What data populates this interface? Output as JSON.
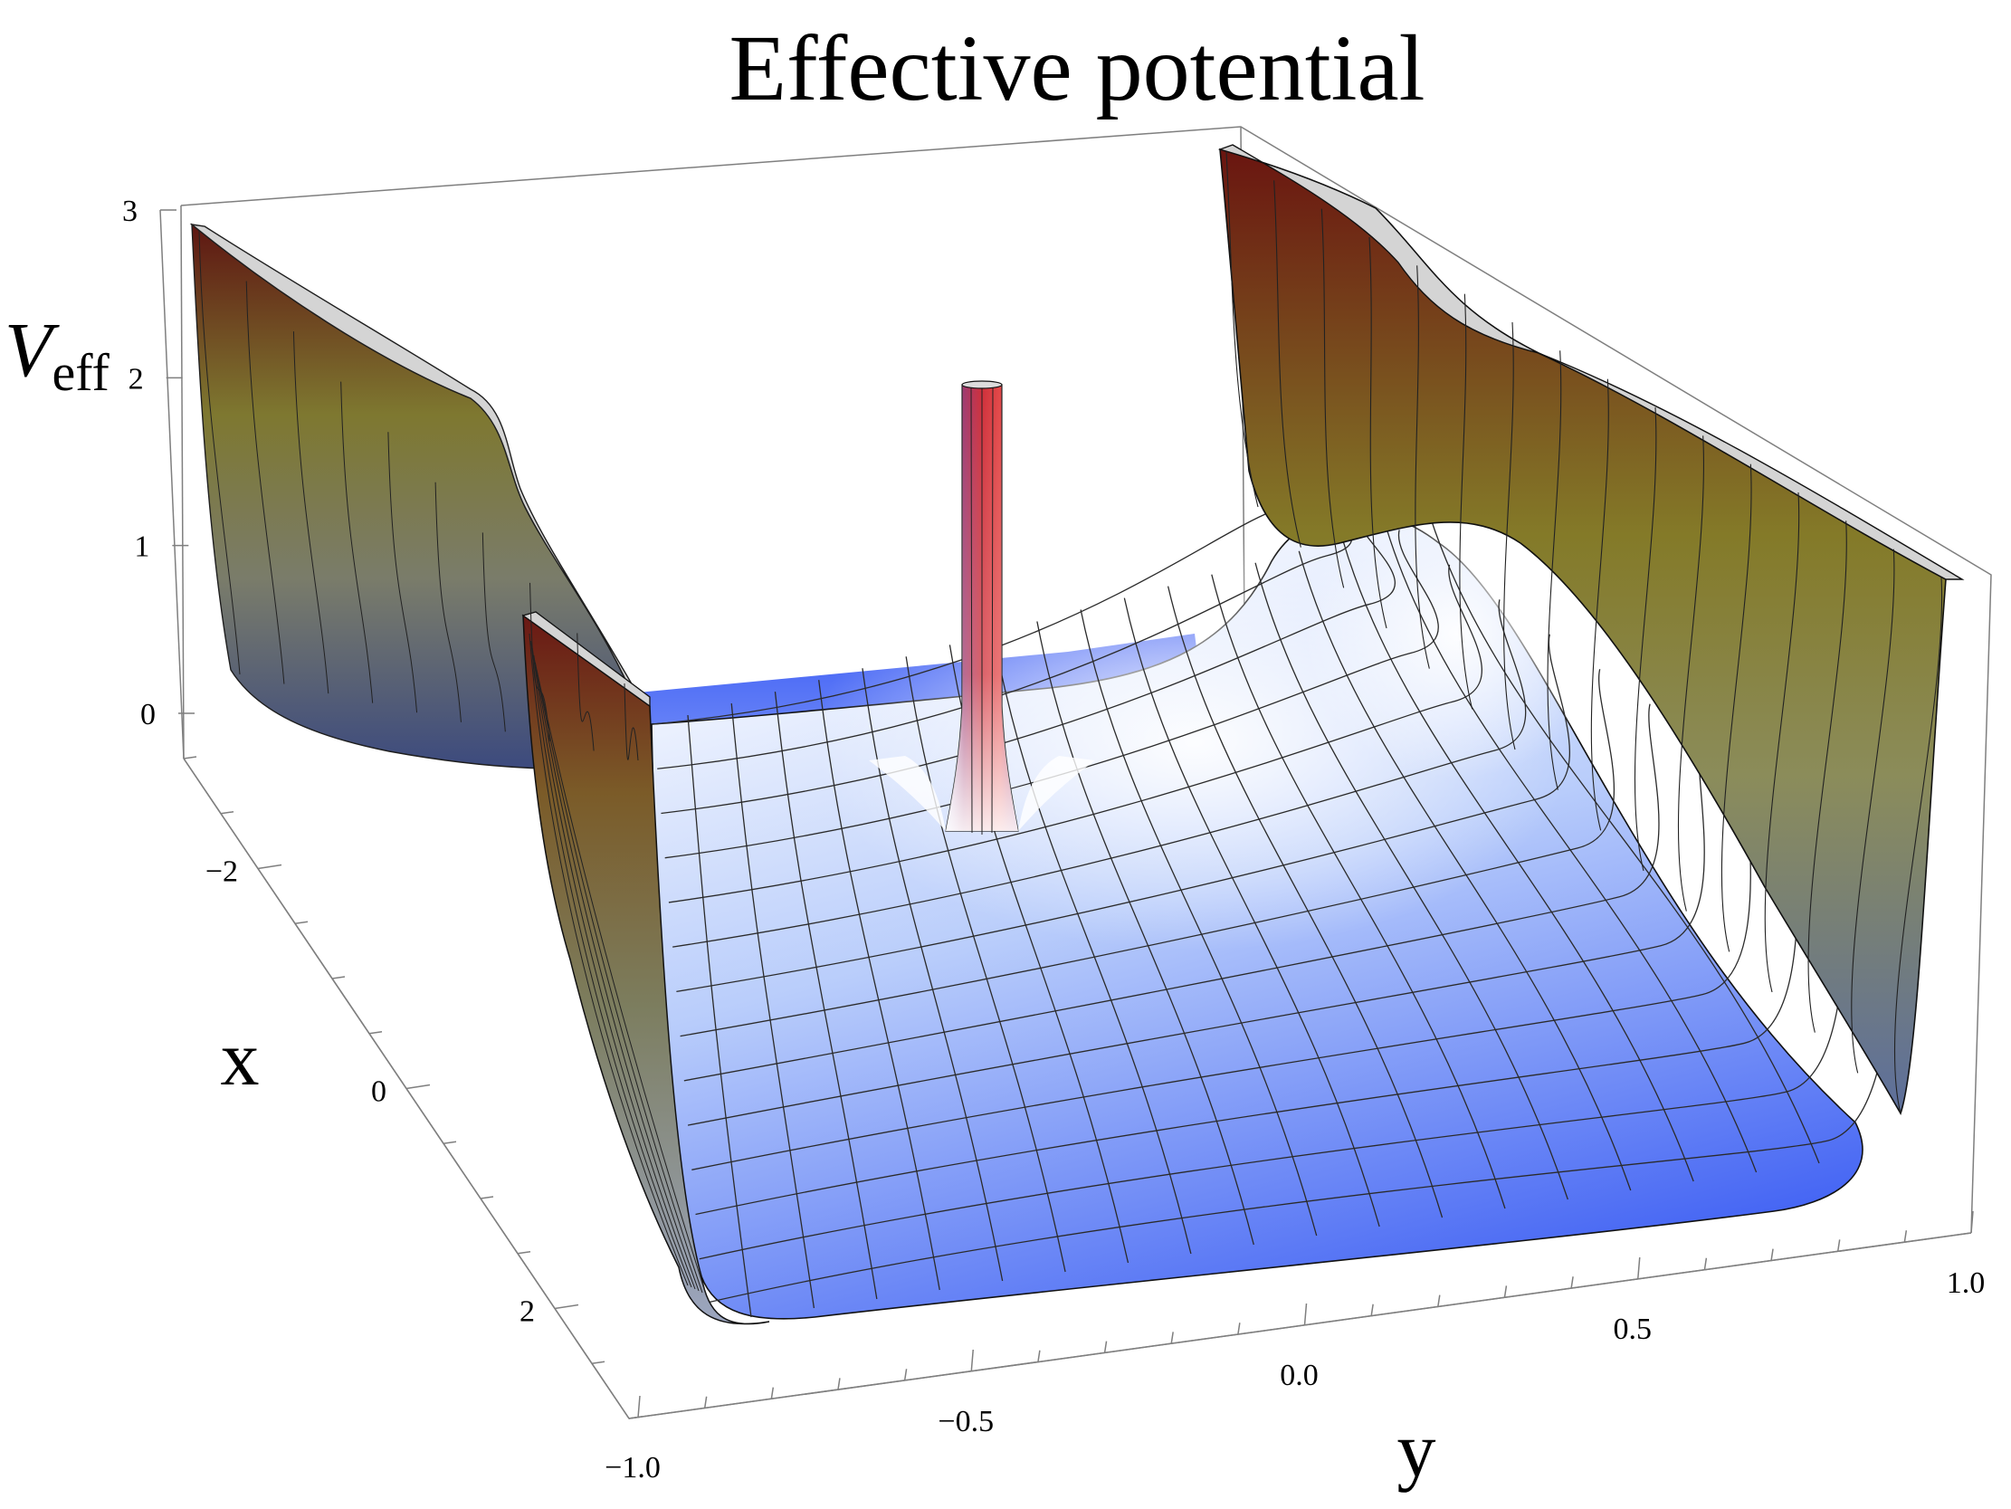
{
  "chart_data": {
    "type": "surface",
    "title": "Effective potential",
    "xlabel": "x",
    "ylabel": "y",
    "zlabel": "V",
    "zlabel_sub": "eff",
    "x_ticks": [
      "−2",
      "0",
      "2"
    ],
    "x_tick_values": [
      -2,
      0,
      2
    ],
    "y_ticks": [
      "−1.0",
      "−0.5",
      "0.0",
      "0.5",
      "1.0"
    ],
    "y_tick_values": [
      -1.0,
      -0.5,
      0.0,
      0.5,
      1.0
    ],
    "z_ticks": [
      "0",
      "1",
      "2",
      "3"
    ],
    "z_tick_values": [
      0,
      1,
      2,
      3
    ],
    "xlim": [
      -3,
      3
    ],
    "ylim": [
      -1,
      1
    ],
    "zlim": [
      -0.2,
      3
    ],
    "surface_colors": {
      "low": "#3f5ff5",
      "mid": "#f4f4ff",
      "high_olive": "#8a8a2c",
      "peak": "#7a1a12",
      "top_cap": "#d6d6d6"
    },
    "features": [
      {
        "name": "wall at y = -1",
        "description": "potential rises steeply to 3"
      },
      {
        "name": "wall at y = 1",
        "description": "potential rises steeply to 3"
      },
      {
        "name": "central spike",
        "x": -1.5,
        "y": -0.5,
        "description": "narrow singular peak"
      }
    ]
  }
}
